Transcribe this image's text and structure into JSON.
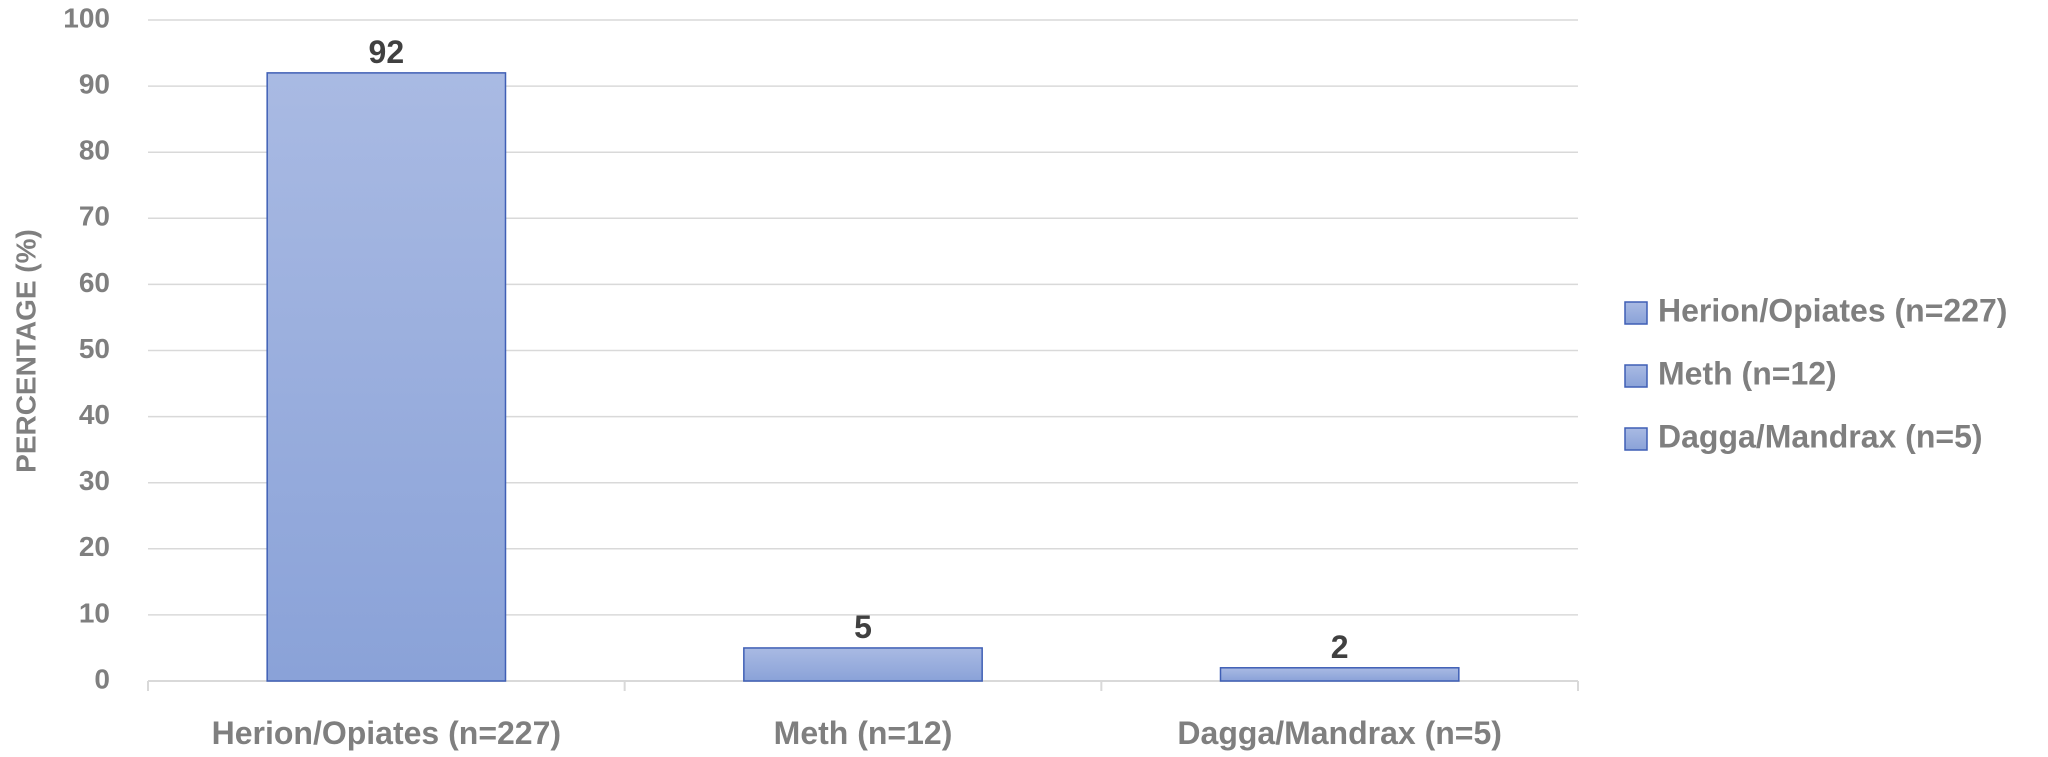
{
  "chart_data": {
    "type": "bar",
    "title": "",
    "xlabel": "",
    "ylabel": "PERCENTAGE (%)",
    "categories": [
      "Herion/Opiates (n=227)",
      "Meth (n=12)",
      "Dagga/Mandrax (n=5)"
    ],
    "series": [
      {
        "values": [
          92,
          5,
          2
        ]
      }
    ],
    "data_labels": [
      "92",
      "5",
      "2"
    ],
    "ylim": [
      0,
      100
    ],
    "yticks": [
      "0",
      "10",
      "20",
      "30",
      "40",
      "50",
      "60",
      "70",
      "80",
      "90",
      "100"
    ],
    "legend": {
      "placement": "right",
      "entries": [
        "Herion/Opiates (n=227)",
        "Meth (n=12)",
        "Dagga/Mandrax (n=5)"
      ]
    },
    "grid": true,
    "colors": {
      "bar_top": "#a9bae3",
      "bar_bottom": "#8aa2d8",
      "bar_border": "#3f5fb5",
      "grid": "#d9d9d9",
      "axis": "#d9d9d9",
      "tick_text": "#7f7f7f",
      "data_label_text": "#404040"
    }
  }
}
